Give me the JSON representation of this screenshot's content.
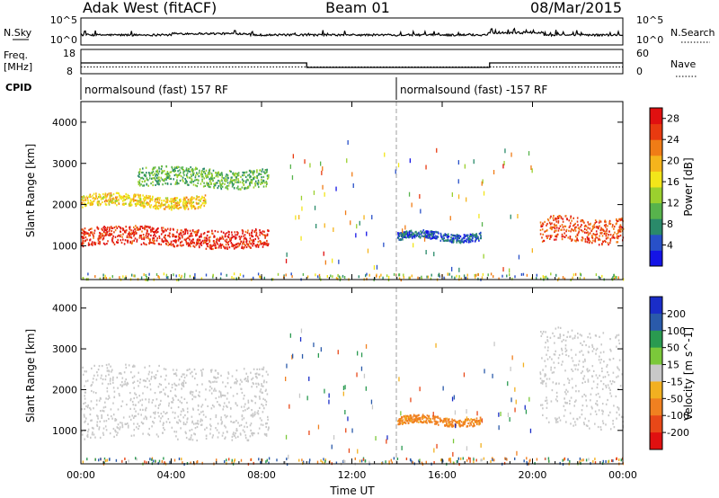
{
  "header": {
    "station": "Adak West (fitACF)",
    "beam": "Beam 01",
    "date": "08/Mar/2015"
  },
  "top_panels": {
    "nsky_label": "N.Sky",
    "nsearch_label": "N.Search",
    "freq_label_1": "Freq.",
    "freq_label_2": "[MHz]",
    "nave_label": "Nave",
    "cpid_label": "CPID",
    "nsky_ticks": [
      "10^5",
      "10^0"
    ],
    "nsearch_ticks": [
      "10^5",
      "10^0"
    ],
    "freq_ticks": [
      "18",
      "8"
    ],
    "nave_ticks": [
      "60",
      "0"
    ],
    "cpid_segments": [
      {
        "start_hour": 0,
        "text": "normalsound (fast) 157 RF"
      },
      {
        "start_hour": 14,
        "text": "normalsound (fast) -157 RF"
      }
    ],
    "freq_high_mhz": 12.4,
    "freq_low_mhz": 10.4,
    "freq_switch_hours": [
      10.0,
      18.1
    ]
  },
  "chart_data": [
    {
      "type": "heatmap",
      "title": "",
      "xlabel": "Time UT",
      "ylabel": "Slant Range [km]",
      "xlim": [
        0,
        24
      ],
      "ylim": [
        180,
        4500
      ],
      "x_ticks": [
        "00:00",
        "04:00",
        "08:00",
        "12:00",
        "16:00",
        "20:00",
        "00:00"
      ],
      "y_ticks": [
        1000,
        2000,
        3000,
        4000
      ],
      "colorbar": {
        "label": "Power [dB]",
        "ticks": [
          4,
          8,
          12,
          16,
          20,
          24,
          28
        ],
        "range": [
          0,
          30
        ],
        "colors": [
          "#1414e6",
          "#2850c8",
          "#2a8a6a",
          "#57b34c",
          "#9bd02e",
          "#f2e51a",
          "#f5b41c",
          "#f07c16",
          "#e83a10",
          "#e01010"
        ]
      },
      "features": [
        {
          "name": "morning-F-band",
          "t_start": 0.0,
          "t_end": 8.3,
          "range_start": 1000,
          "range_end": 1450,
          "power": 27
        },
        {
          "name": "morning-upper-band",
          "t_start": 0.0,
          "t_end": 5.5,
          "range_start": 1950,
          "range_end": 2250,
          "power": 18
        },
        {
          "name": "morning-high-band",
          "t_start": 2.5,
          "t_end": 8.3,
          "range_start": 2450,
          "range_end": 2900,
          "power": 11
        },
        {
          "name": "midday-patch",
          "t_start": 14.0,
          "t_end": 17.7,
          "range_start": 1150,
          "range_end": 1350,
          "power": 5
        },
        {
          "name": "evening-F-band",
          "t_start": 20.3,
          "t_end": 24.0,
          "range_start": 1100,
          "range_end": 1700,
          "power": 25
        }
      ]
    },
    {
      "type": "heatmap",
      "title": "",
      "xlabel": "Time UT",
      "ylabel": "Slant Range [km]",
      "xlim": [
        0,
        24
      ],
      "ylim": [
        180,
        4500
      ],
      "x_ticks": [
        "00:00",
        "04:00",
        "08:00",
        "12:00",
        "16:00",
        "20:00",
        "00:00"
      ],
      "y_ticks": [
        1000,
        2000,
        3000,
        4000
      ],
      "colorbar": {
        "label": "Velocity [m s^-1]",
        "ticks": [
          200,
          100,
          50,
          15,
          -15,
          -50,
          -100,
          -200
        ],
        "range": [
          -250,
          250
        ],
        "colors": [
          "#1a2dc8",
          "#2a5aaa",
          "#2a9a50",
          "#7bc83a",
          "#c8c8c8",
          "#f2b020",
          "#f08020",
          "#e84818",
          "#e01010"
        ]
      },
      "features": [
        {
          "name": "morning-ground-scatter",
          "t_start": 0.0,
          "t_end": 8.3,
          "range_start": 800,
          "range_end": 2600,
          "velocity": 0
        },
        {
          "name": "midday-patch",
          "t_start": 14.0,
          "t_end": 17.7,
          "range_start": 1150,
          "range_end": 1350,
          "velocity": -60
        },
        {
          "name": "evening-ground-scatter",
          "t_start": 20.3,
          "t_end": 24.0,
          "range_start": 1100,
          "range_end": 3500,
          "velocity": 0
        }
      ]
    }
  ]
}
